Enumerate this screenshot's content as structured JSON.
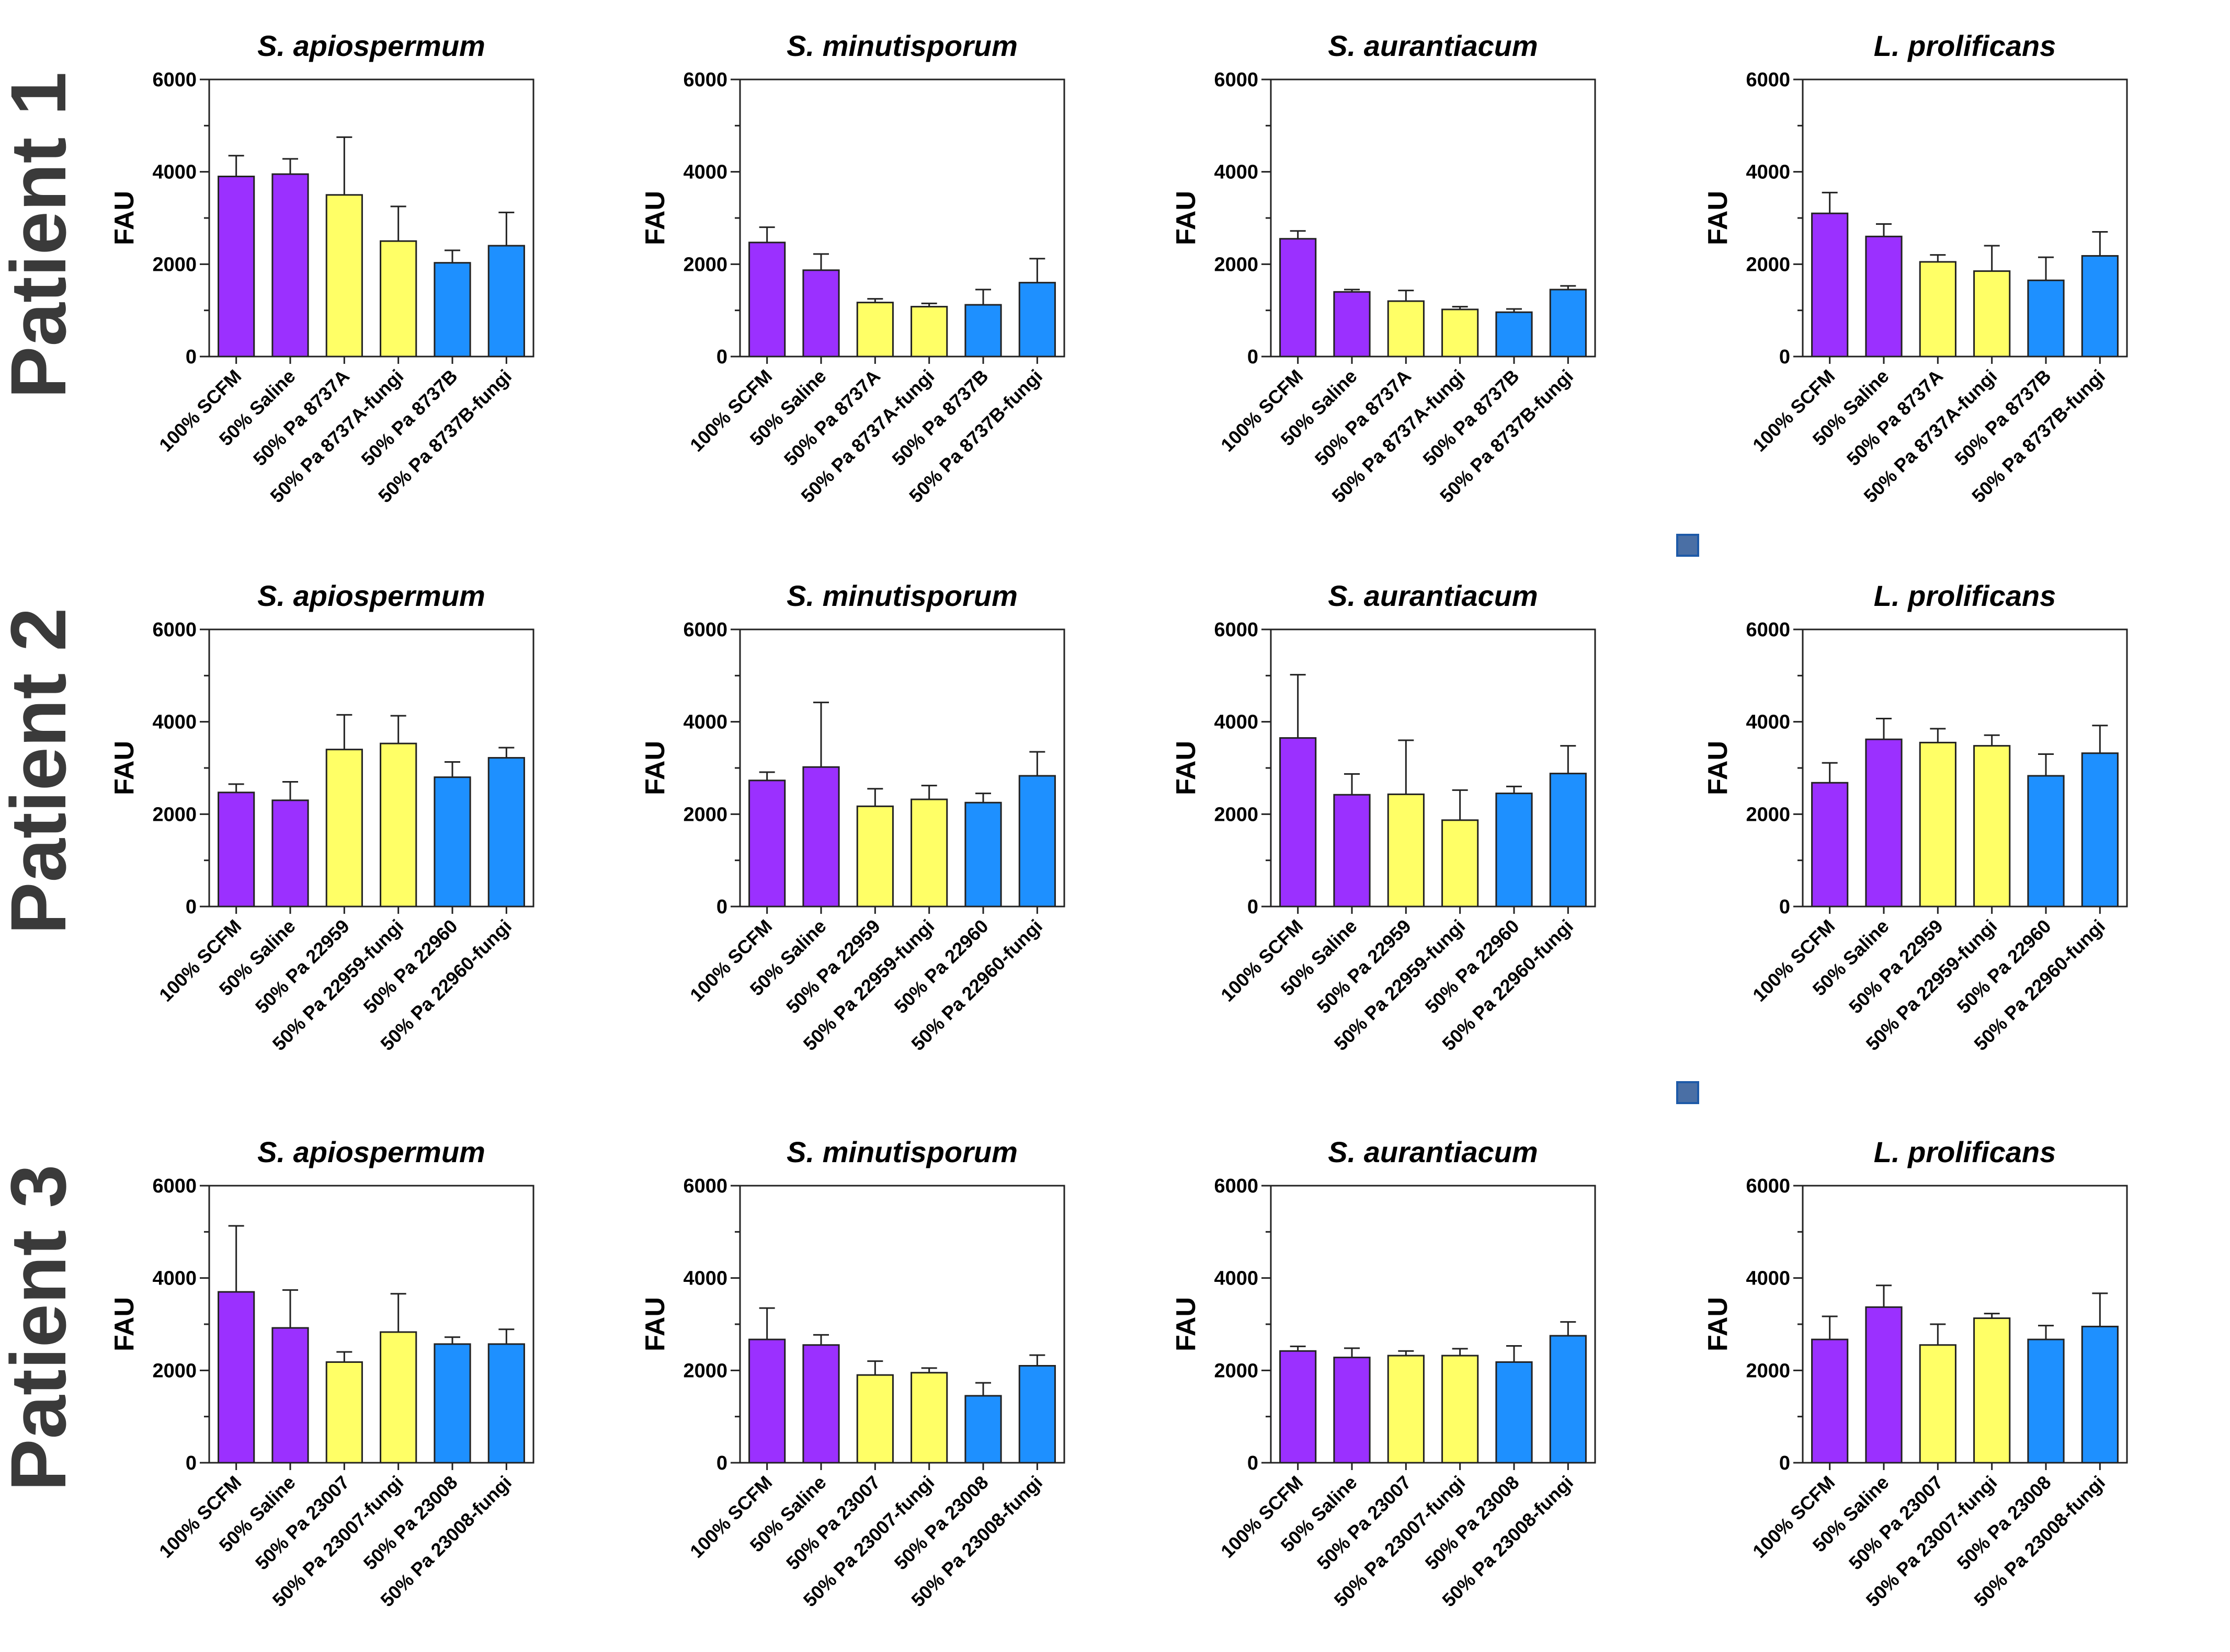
{
  "row_labels": [
    "Patient 1",
    "Patient 2",
    "Patient 3"
  ],
  "colors": {
    "purple": "#9B30FF",
    "yellow": "#FFFF66",
    "blue": "#1E90FF",
    "axis": "#222222",
    "marker": "#4A6FA5"
  },
  "chart_data": [
    {
      "type": "bar",
      "row": "Patient 1",
      "title": "S. apiospermum",
      "ylabel": "FAU",
      "ylim": [
        0,
        6000
      ],
      "yticks": [
        0,
        2000,
        4000,
        6000
      ],
      "categories": [
        "100% SCFM",
        "50% Saline",
        "50% Pa 8737A",
        "50% Pa 8737A-fungi",
        "50% Pa 8737B",
        "50% Pa 8737B-fungi"
      ],
      "values": [
        3900,
        3950,
        3500,
        2500,
        2030,
        2400
      ],
      "errors": [
        450,
        330,
        1250,
        750,
        270,
        720
      ],
      "bar_colors": [
        "purple",
        "purple",
        "yellow",
        "yellow",
        "blue",
        "blue"
      ]
    },
    {
      "type": "bar",
      "row": "Patient 1",
      "title": "S. minutisporum",
      "ylabel": "FAU",
      "ylim": [
        0,
        6000
      ],
      "yticks": [
        0,
        2000,
        4000,
        6000
      ],
      "categories": [
        "100% SCFM",
        "50% Saline",
        "50% Pa 8737A",
        "50% Pa 8737A-fungi",
        "50% Pa 8737B",
        "50% Pa 8737B-fungi"
      ],
      "values": [
        2470,
        1870,
        1170,
        1080,
        1120,
        1600
      ],
      "errors": [
        330,
        350,
        80,
        70,
        330,
        520
      ],
      "bar_colors": [
        "purple",
        "purple",
        "yellow",
        "yellow",
        "blue",
        "blue"
      ]
    },
    {
      "type": "bar",
      "row": "Patient 1",
      "title": "S. aurantiacum",
      "ylabel": "FAU",
      "ylim": [
        0,
        6000
      ],
      "yticks": [
        0,
        2000,
        4000,
        6000
      ],
      "categories": [
        "100% SCFM",
        "50% Saline",
        "50% Pa 8737A",
        "50% Pa 8737A-fungi",
        "50% Pa 8737B",
        "50% Pa 8737B-fungi"
      ],
      "values": [
        2550,
        1400,
        1200,
        1020,
        960,
        1450
      ],
      "errors": [
        170,
        50,
        230,
        60,
        70,
        80
      ],
      "bar_colors": [
        "purple",
        "purple",
        "yellow",
        "yellow",
        "blue",
        "blue"
      ]
    },
    {
      "type": "bar",
      "row": "Patient 1",
      "title": "L. prolificans",
      "ylabel": "FAU",
      "ylim": [
        0,
        6000
      ],
      "yticks": [
        0,
        2000,
        4000,
        6000
      ],
      "categories": [
        "100% SCFM",
        "50% Saline",
        "50% Pa 8737A",
        "50% Pa 8737A-fungi",
        "50% Pa 8737B",
        "50% Pa 8737B-fungi"
      ],
      "values": [
        3100,
        2600,
        2050,
        1850,
        1650,
        2180
      ],
      "errors": [
        450,
        270,
        150,
        550,
        500,
        520
      ],
      "bar_colors": [
        "purple",
        "purple",
        "yellow",
        "yellow",
        "blue",
        "blue"
      ]
    },
    {
      "type": "bar",
      "row": "Patient 2",
      "title": "S. apiospermum",
      "ylabel": "FAU",
      "ylim": [
        0,
        6000
      ],
      "yticks": [
        0,
        2000,
        4000,
        6000
      ],
      "categories": [
        "100% SCFM",
        "50% Saline",
        "50% Pa 22959",
        "50% Pa 22959-fungi",
        "50% Pa 22960",
        "50% Pa 22960-fungi"
      ],
      "values": [
        2470,
        2300,
        3400,
        3530,
        2800,
        3220
      ],
      "errors": [
        180,
        400,
        750,
        600,
        330,
        220
      ],
      "bar_colors": [
        "purple",
        "purple",
        "yellow",
        "yellow",
        "blue",
        "blue"
      ]
    },
    {
      "type": "bar",
      "row": "Patient 2",
      "title": "S. minutisporum",
      "ylabel": "FAU",
      "ylim": [
        0,
        6000
      ],
      "yticks": [
        0,
        2000,
        4000,
        6000
      ],
      "categories": [
        "100% SCFM",
        "50% Saline",
        "50% Pa 22959",
        "50% Pa 22959-fungi",
        "50% Pa 22960",
        "50% Pa 22960-fungi"
      ],
      "values": [
        2730,
        3020,
        2170,
        2320,
        2250,
        2830
      ],
      "errors": [
        180,
        1400,
        380,
        300,
        200,
        520
      ],
      "bar_colors": [
        "purple",
        "purple",
        "yellow",
        "yellow",
        "blue",
        "blue"
      ]
    },
    {
      "type": "bar",
      "row": "Patient 2",
      "title": "S. aurantiacum",
      "ylabel": "FAU",
      "ylim": [
        0,
        6000
      ],
      "yticks": [
        0,
        2000,
        4000,
        6000
      ],
      "categories": [
        "100% SCFM",
        "50% Saline",
        "50% Pa 22959",
        "50% Pa 22959-fungi",
        "50% Pa 22960",
        "50% Pa 22960-fungi"
      ],
      "values": [
        3650,
        2420,
        2430,
        1870,
        2450,
        2880
      ],
      "errors": [
        1370,
        450,
        1170,
        650,
        150,
        600
      ],
      "bar_colors": [
        "purple",
        "purple",
        "yellow",
        "yellow",
        "blue",
        "blue"
      ]
    },
    {
      "type": "bar",
      "row": "Patient 2",
      "title": "L. prolificans",
      "ylabel": "FAU",
      "ylim": [
        0,
        6000
      ],
      "yticks": [
        0,
        2000,
        4000,
        6000
      ],
      "categories": [
        "100% SCFM",
        "50% Saline",
        "50% Pa 22959",
        "50% Pa 22959-fungi",
        "50% Pa 22960",
        "50% Pa 22960-fungi"
      ],
      "values": [
        2680,
        3620,
        3550,
        3480,
        2830,
        3320
      ],
      "errors": [
        430,
        450,
        300,
        230,
        470,
        600
      ],
      "bar_colors": [
        "purple",
        "purple",
        "yellow",
        "yellow",
        "blue",
        "blue"
      ]
    },
    {
      "type": "bar",
      "row": "Patient 3",
      "title": "S. apiospermum",
      "ylabel": "FAU",
      "ylim": [
        0,
        6000
      ],
      "yticks": [
        0,
        2000,
        4000,
        6000
      ],
      "categories": [
        "100% SCFM",
        "50% Saline",
        "50% Pa 23007",
        "50% Pa 23007-fungi",
        "50% Pa 23008",
        "50% Pa 23008-fungi"
      ],
      "values": [
        3700,
        2920,
        2180,
        2830,
        2570,
        2570
      ],
      "errors": [
        1430,
        820,
        220,
        830,
        150,
        320
      ],
      "bar_colors": [
        "purple",
        "purple",
        "yellow",
        "yellow",
        "blue",
        "blue"
      ]
    },
    {
      "type": "bar",
      "row": "Patient 3",
      "title": "S. minutisporum",
      "ylabel": "FAU",
      "ylim": [
        0,
        6000
      ],
      "yticks": [
        0,
        2000,
        4000,
        6000
      ],
      "categories": [
        "100% SCFM",
        "50% Saline",
        "50% Pa 23007",
        "50% Pa 23007-fungi",
        "50% Pa 23008",
        "50% Pa 23008-fungi"
      ],
      "values": [
        2670,
        2550,
        1900,
        1950,
        1450,
        2100
      ],
      "errors": [
        680,
        220,
        300,
        100,
        280,
        230
      ],
      "bar_colors": [
        "purple",
        "purple",
        "yellow",
        "yellow",
        "blue",
        "blue"
      ]
    },
    {
      "type": "bar",
      "row": "Patient 3",
      "title": "S. aurantiacum",
      "ylabel": "FAU",
      "ylim": [
        0,
        6000
      ],
      "yticks": [
        0,
        2000,
        4000,
        6000
      ],
      "categories": [
        "100% SCFM",
        "50% Saline",
        "50% Pa 23007",
        "50% Pa 23007-fungi",
        "50% Pa 23008",
        "50% Pa 23008-fungi"
      ],
      "values": [
        2420,
        2280,
        2320,
        2320,
        2180,
        2750
      ],
      "errors": [
        100,
        200,
        100,
        150,
        350,
        300
      ],
      "bar_colors": [
        "purple",
        "purple",
        "yellow",
        "yellow",
        "blue",
        "blue"
      ]
    },
    {
      "type": "bar",
      "row": "Patient 3",
      "title": "L. prolificans",
      "ylabel": "FAU",
      "ylim": [
        0,
        6000
      ],
      "yticks": [
        0,
        2000,
        4000,
        6000
      ],
      "categories": [
        "100% SCFM",
        "50% Saline",
        "50% Pa 23007",
        "50% Pa 23007-fungi",
        "50% Pa 23008",
        "50% Pa 23008-fungi"
      ],
      "values": [
        2670,
        3370,
        2550,
        3130,
        2670,
        2950
      ],
      "errors": [
        500,
        470,
        450,
        100,
        300,
        720
      ],
      "bar_colors": [
        "purple",
        "purple",
        "yellow",
        "yellow",
        "blue",
        "blue"
      ]
    }
  ]
}
